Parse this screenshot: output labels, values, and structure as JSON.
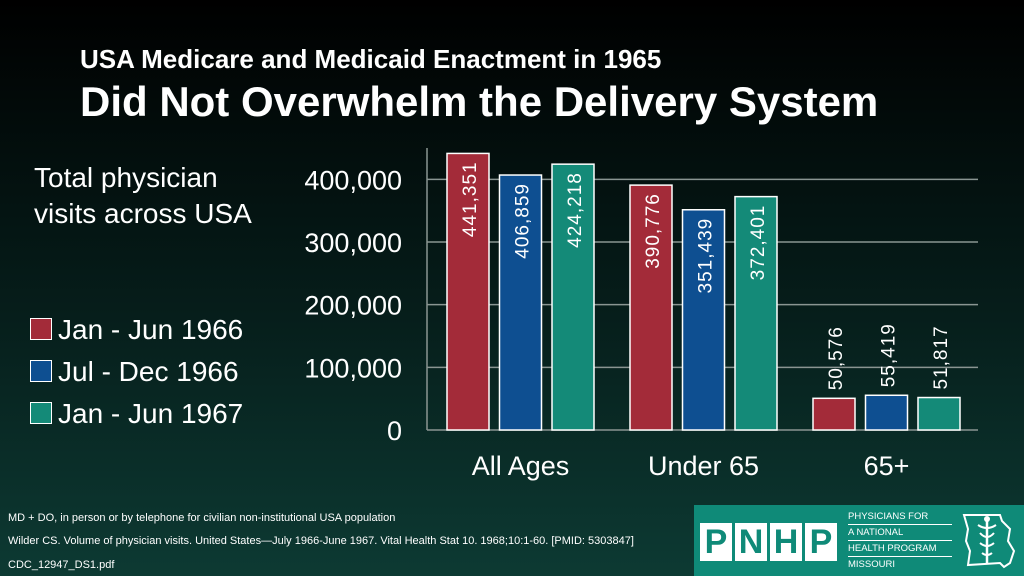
{
  "title": {
    "line1": "USA Medicare and Medicaid Enactment in 1965",
    "line2": "Did Not Overwhelm the Delivery System"
  },
  "description": "Total physician visits across USA",
  "chart_data": {
    "type": "bar",
    "title": "Total physician visits across USA",
    "categories": [
      "All Ages",
      "Under 65",
      "65+"
    ],
    "series": [
      {
        "name": "Jan - Jun 1966",
        "color": "#a32b39",
        "values": [
          441351,
          390776,
          50576
        ],
        "labels": [
          "441,351",
          "390,776",
          "50,576"
        ]
      },
      {
        "name": "Jul - Dec 1966",
        "color": "#0e4f91",
        "values": [
          406859,
          351439,
          55419
        ],
        "labels": [
          "406,859",
          "351,439",
          "55,419"
        ]
      },
      {
        "name": "Jan - Jun 1967",
        "color": "#148a78",
        "values": [
          424218,
          372401,
          51817
        ],
        "labels": [
          "424,218",
          "372,401",
          "51,817"
        ]
      }
    ],
    "yticks": [
      0,
      100000,
      200000,
      300000,
      400000
    ],
    "ytick_labels": [
      "0",
      "100,000",
      "200,000",
      "300,000",
      "400,000"
    ],
    "ylim": [
      0,
      450000
    ],
    "grid": true,
    "legend_position": "left"
  },
  "footnotes": [
    "MD + DO, in person or by telephone for civilian non-institutional USA population",
    "Wilder CS. Volume of physician visits. United States—July 1966-June 1967. Vital Health Stat 10. 1968;10:1-60. [PMID: 5303847]",
    "CDC_12947_DS1.pdf"
  ],
  "logo": {
    "letters": [
      "P",
      "N",
      "H",
      "P"
    ],
    "text_lines": [
      "PHYSICIANS FOR",
      "A NATIONAL",
      "HEALTH PROGRAM",
      "MISSOURI"
    ],
    "icon": "caduceus-missouri-icon"
  }
}
